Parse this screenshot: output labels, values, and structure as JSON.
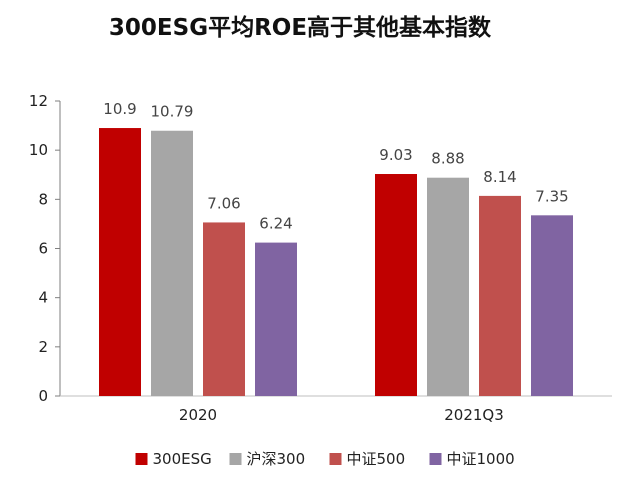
{
  "chart_data": {
    "type": "bar",
    "title": "300ESG平均ROE高于其他基本指数",
    "categories": [
      "2020",
      "2021Q3"
    ],
    "ylim": [
      0,
      12
    ],
    "yticks": [
      0,
      2,
      4,
      6,
      8,
      10,
      12
    ],
    "grid": false,
    "legend_position": "bottom",
    "series": [
      {
        "name": "300ESG",
        "color": "#c00000",
        "values": [
          10.9,
          9.03
        ]
      },
      {
        "name": "沪深300",
        "color": "#a6a6a6",
        "values": [
          10.79,
          8.88
        ]
      },
      {
        "name": "中证500",
        "color": "#c0504d",
        "values": [
          7.06,
          8.14
        ]
      },
      {
        "name": "中证1000",
        "color": "#8064a2",
        "values": [
          6.24,
          7.35
        ]
      }
    ]
  }
}
